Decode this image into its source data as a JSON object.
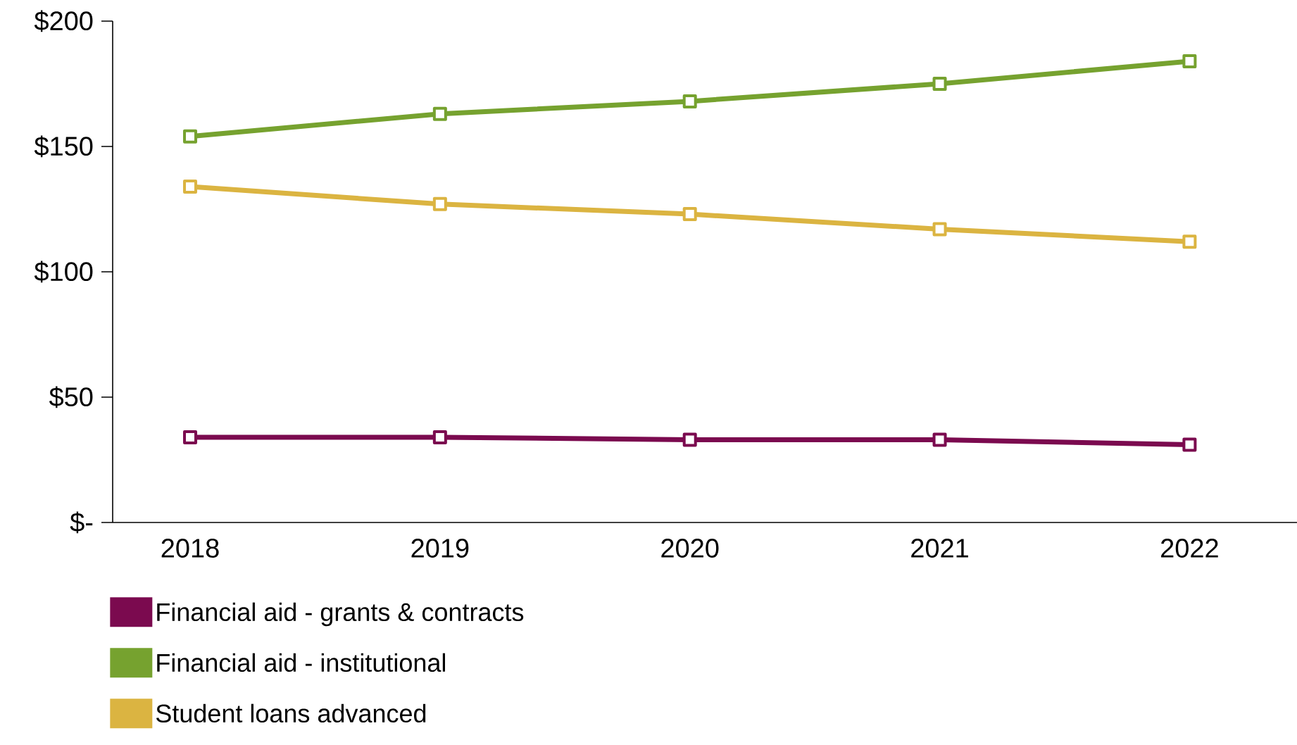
{
  "chart_data": {
    "type": "line",
    "categories": [
      "2018",
      "2019",
      "2020",
      "2021",
      "2022"
    ],
    "series": [
      {
        "name": "Financial aid - grants & contracts",
        "color": "#7b0a4f",
        "values": [
          34,
          34,
          33,
          33,
          31
        ]
      },
      {
        "name": "Financial aid - institutional",
        "color": "#76a22f",
        "values": [
          154,
          163,
          168,
          175,
          184
        ]
      },
      {
        "name": "Student loans advanced",
        "color": "#dbb441",
        "values": [
          134,
          127,
          123,
          117,
          112
        ]
      }
    ],
    "ylim": [
      0,
      200
    ],
    "yticks": [
      {
        "value": 0,
        "label": "$-"
      },
      {
        "value": 50,
        "label": "$50"
      },
      {
        "value": 100,
        "label": "$100"
      },
      {
        "value": 150,
        "label": "$150"
      },
      {
        "value": 200,
        "label": "$200"
      }
    ],
    "grid": false,
    "legend": "bottom left",
    "marker": "square",
    "line_style": "solid"
  }
}
